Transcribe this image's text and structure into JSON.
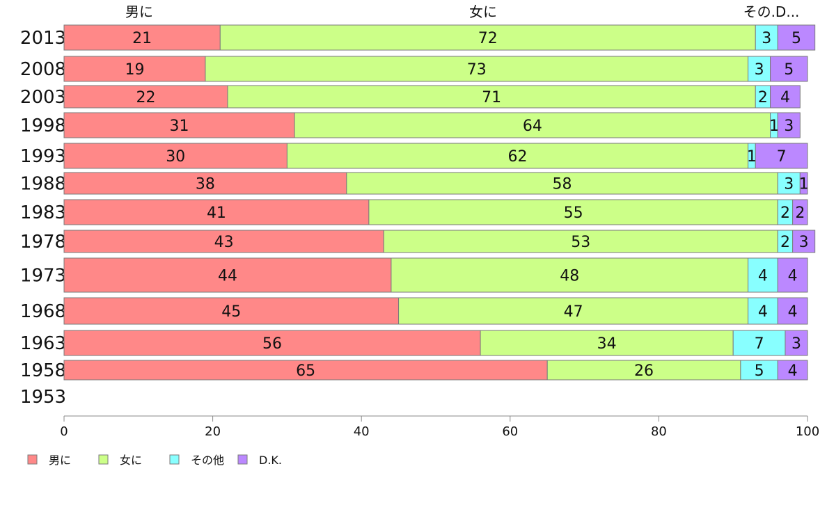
{
  "chart_data": {
    "type": "bar",
    "orientation": "horizontal",
    "stacked": true,
    "categories": [
      "2013",
      "2008",
      "2003",
      "1998",
      "1993",
      "1988",
      "1983",
      "1978",
      "1973",
      "1968",
      "1963",
      "1958",
      "1953"
    ],
    "series": [
      {
        "name": "男に",
        "color": "#ff8888",
        "values": [
          21,
          19,
          22,
          31,
          30,
          38,
          41,
          43,
          44,
          45,
          56,
          65,
          null
        ]
      },
      {
        "name": "女に",
        "color": "#ccff88",
        "values": [
          72,
          73,
          71,
          64,
          62,
          58,
          55,
          53,
          48,
          47,
          34,
          26,
          null
        ]
      },
      {
        "name": "その他",
        "color": "#88ffff",
        "values": [
          3,
          3,
          2,
          1,
          1,
          3,
          2,
          2,
          4,
          4,
          7,
          5,
          null
        ]
      },
      {
        "name": "D.K.",
        "color": "#bb88ff",
        "values": [
          5,
          5,
          4,
          3,
          7,
          1,
          2,
          3,
          4,
          4,
          3,
          4,
          null
        ]
      }
    ],
    "top_headers": [
      "男に",
      "女に",
      "その.D..."
    ],
    "xlim": [
      0,
      100
    ],
    "xticks": [
      0,
      20,
      40,
      60,
      80,
      100
    ],
    "legend_position": "bottom-left",
    "grid": false
  }
}
